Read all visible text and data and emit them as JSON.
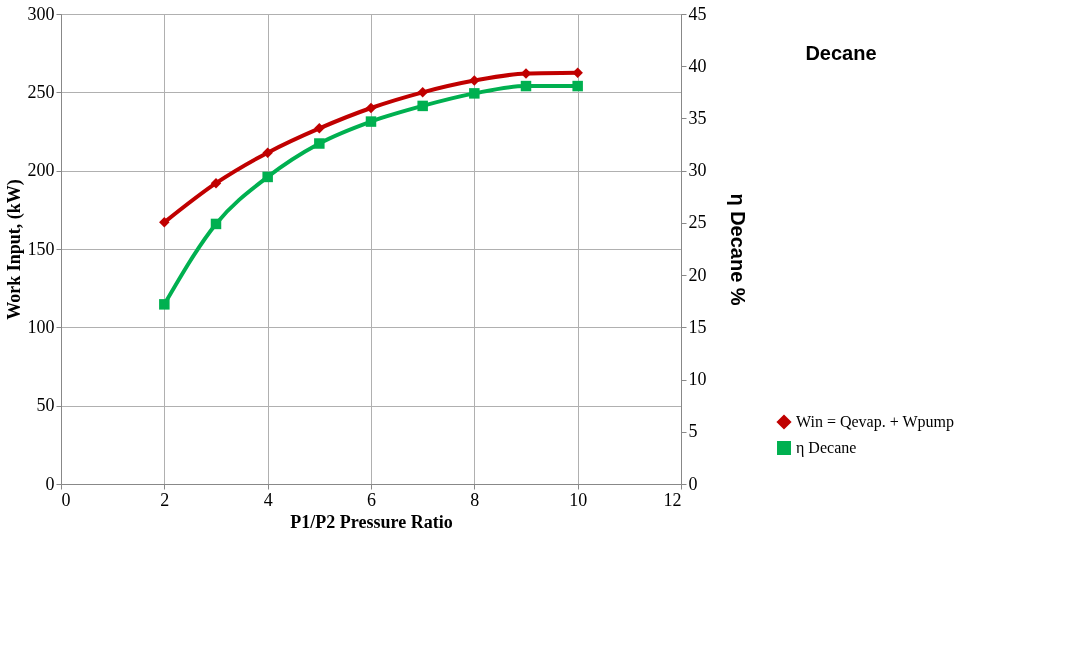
{
  "chart_data": {
    "type": "line",
    "xlabel": "P1/P2 Pressure Ratio",
    "ylabel": "Work Input, (kW)",
    "y2label": "η Decane %",
    "annotations": [
      "Decane"
    ],
    "x": [
      2,
      3,
      4,
      5,
      6,
      7,
      8,
      9,
      10
    ],
    "series": [
      {
        "name": "Win = Qevap. + Wpump",
        "color": "#c00000",
        "marker": "diamond",
        "values": [
          167,
          192,
          211.5,
          227,
          240,
          250,
          257.5,
          262,
          262.5
        ]
      },
      {
        "name": "η Decane",
        "color": "#00b050",
        "marker": "square",
        "axis": "y2",
        "values": [
          17.2,
          24.9,
          29.4,
          32.6,
          34.7,
          36.2,
          37.4,
          38.1,
          38.1
        ]
      }
    ],
    "xlim": [
      0,
      12
    ],
    "xticks": [
      0,
      2,
      4,
      6,
      8,
      10,
      12
    ],
    "ylim": [
      0,
      300
    ],
    "yticks": [
      0,
      50,
      100,
      150,
      200,
      250,
      300
    ],
    "y2lim": [
      0,
      45
    ],
    "y2ticks": [
      0,
      5,
      10,
      15,
      20,
      25,
      30,
      35,
      40,
      45
    ],
    "grid": true,
    "legend": "right",
    "line_style": "solid"
  }
}
